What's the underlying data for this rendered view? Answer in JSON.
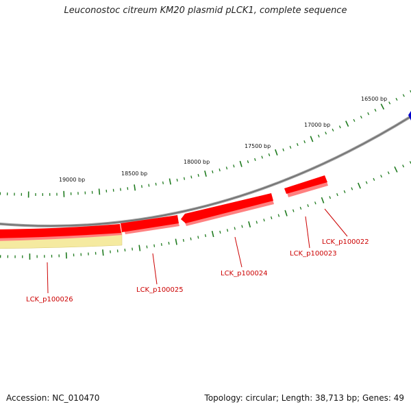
{
  "title": "Leuconostoc citreum KM20 plasmid pLCK1, complete sequence",
  "footer": {
    "accession": "Accession: NC_010470",
    "summary": "Topology: circular; Length: 38,713 bp; Genes: 49"
  },
  "colors": {
    "backbone": "#808080",
    "gene_forward": "#ff0000",
    "gene_shadow": "#ff8080",
    "highlight_band": "#f5eaa0",
    "tick": "#1e7a1e",
    "label": "#cc0000",
    "blue_marker": "#0000cc"
  },
  "tick_labels": [
    {
      "text": "16500 bp"
    },
    {
      "text": "17000 bp"
    },
    {
      "text": "17500 bp"
    },
    {
      "text": "18000 bp"
    },
    {
      "text": "18500 bp"
    },
    {
      "text": "19000 bp"
    }
  ],
  "genes": [
    {
      "name": "LCK_p100022"
    },
    {
      "name": "LCK_p100023"
    },
    {
      "name": "LCK_p100024"
    },
    {
      "name": "LCK_p100025"
    },
    {
      "name": "LCK_p100026"
    }
  ]
}
